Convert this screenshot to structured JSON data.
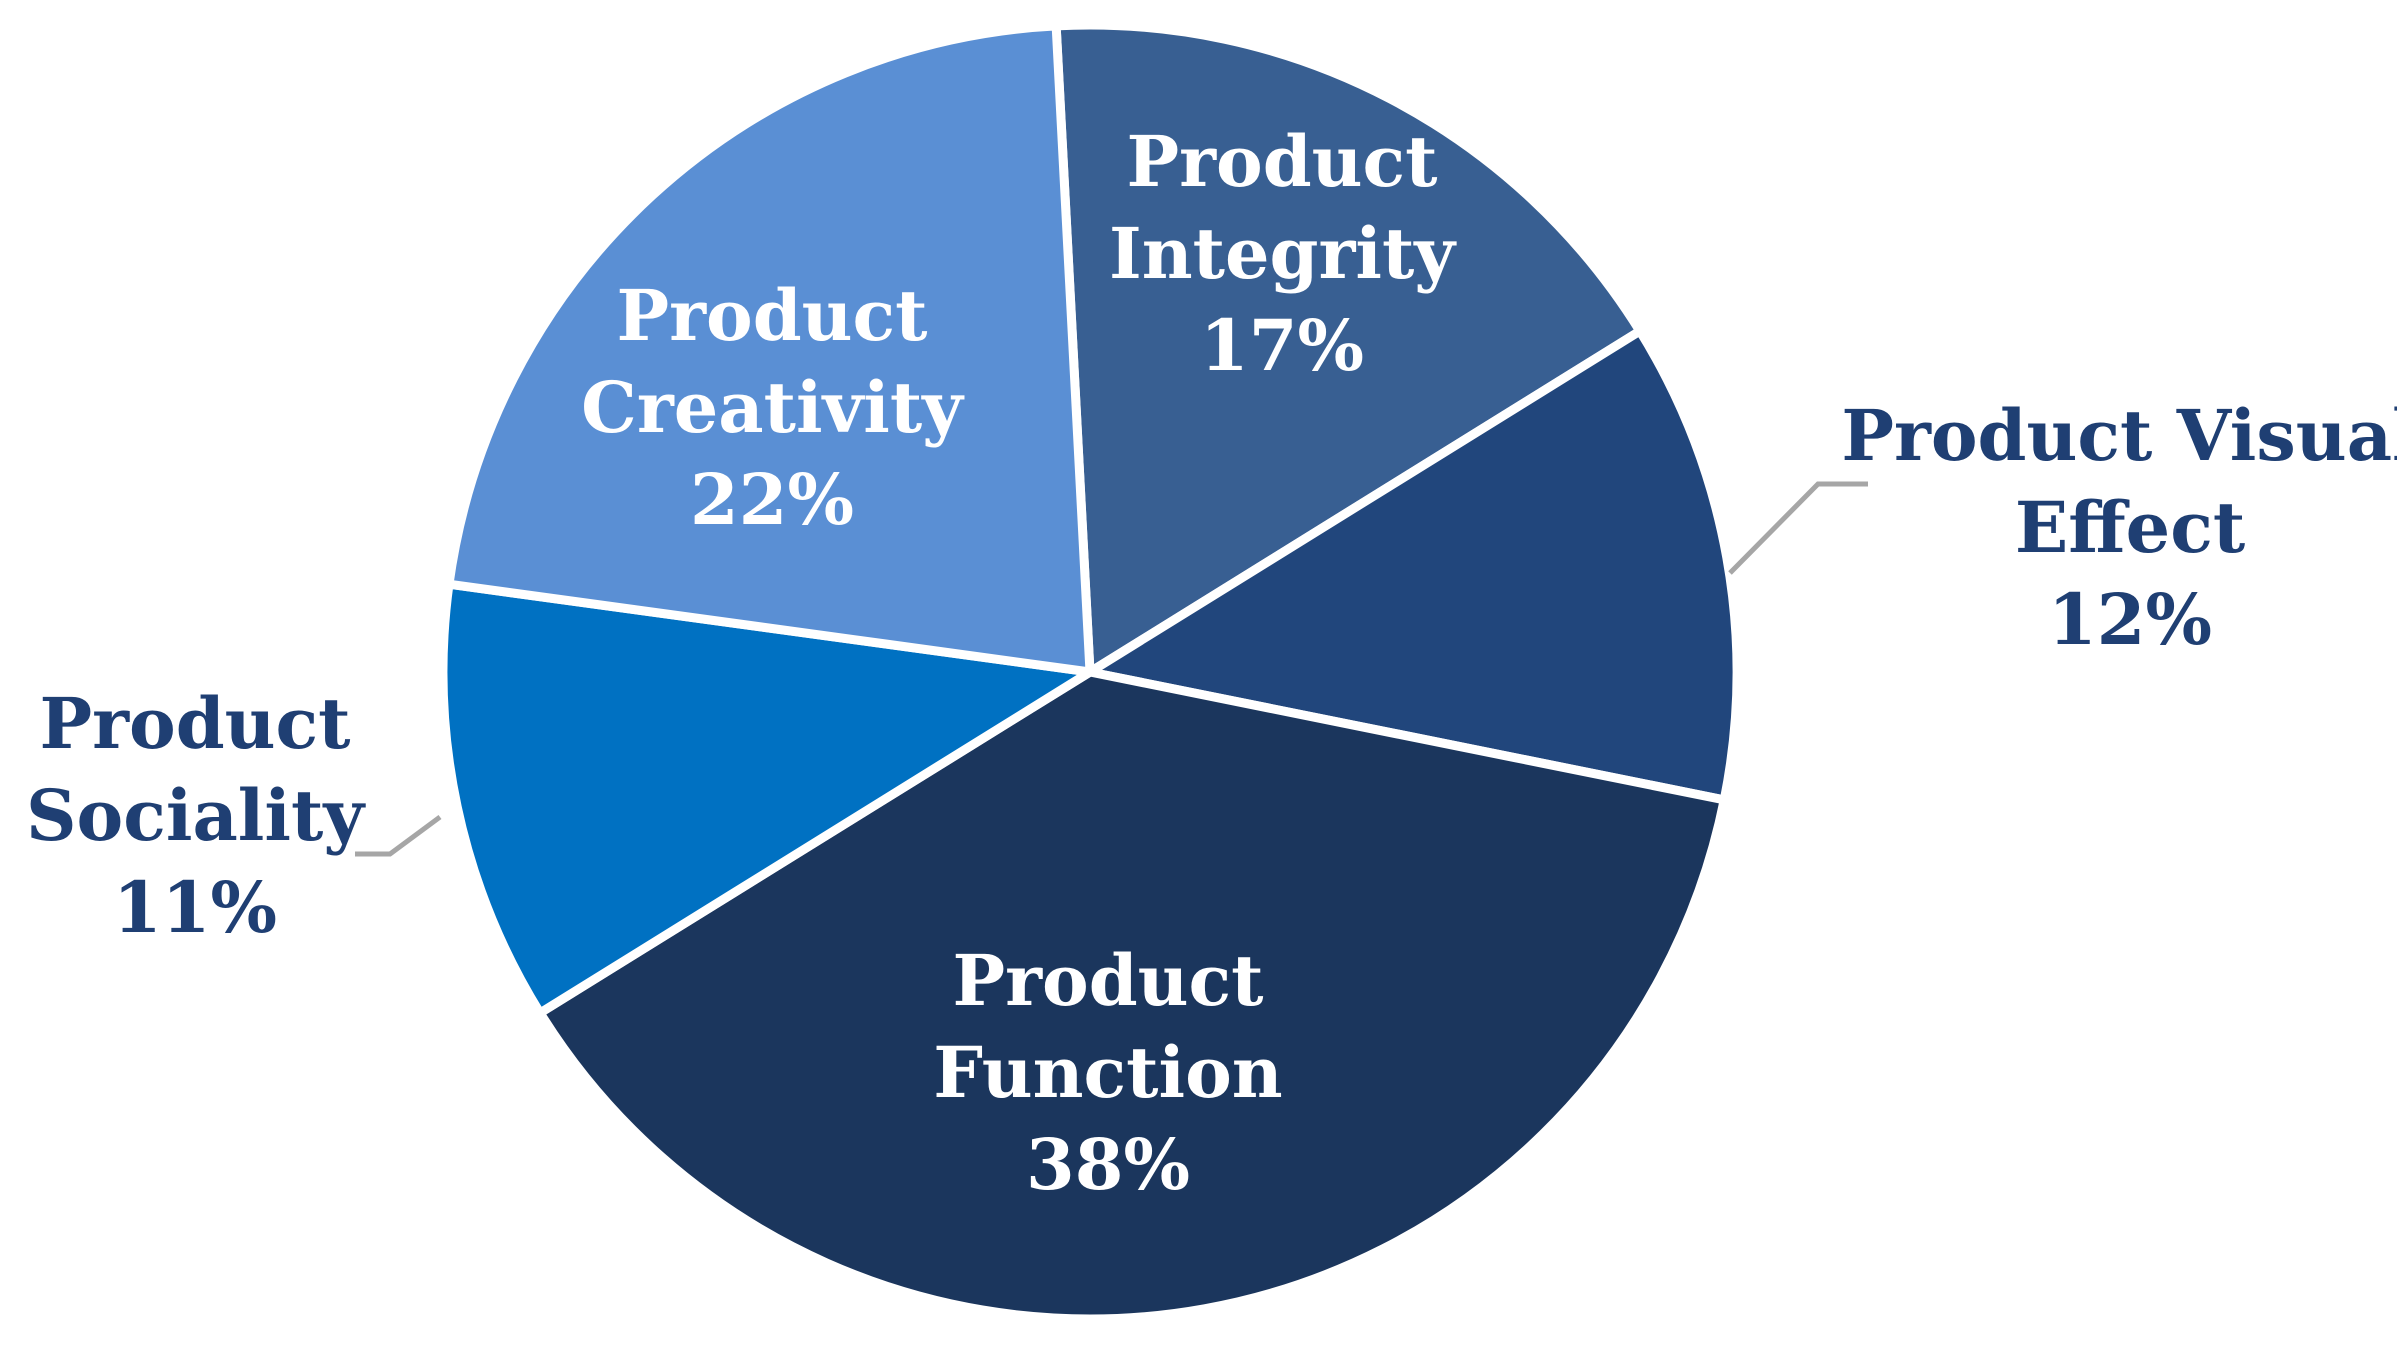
{
  "chart_data": {
    "type": "pie",
    "title": "",
    "slices": [
      {
        "label_lines": [
          "Product",
          "Integrity"
        ],
        "value": 17,
        "value_label": "17%",
        "color": "#385f92",
        "label_position": "inside"
      },
      {
        "label_lines": [
          "Product Visual",
          "Effect"
        ],
        "value": 12,
        "value_label": "12%",
        "color": "#21467c",
        "label_position": "outside-right"
      },
      {
        "label_lines": [
          "Product",
          "Function"
        ],
        "value": 38,
        "value_label": "38%",
        "color": "#1b365d",
        "label_position": "inside"
      },
      {
        "label_lines": [
          "Product",
          "Sociality"
        ],
        "value": 11,
        "value_label": "11%",
        "color": "#0071c2",
        "label_position": "outside-left"
      },
      {
        "label_lines": [
          "Product",
          "Creativity"
        ],
        "value": 22,
        "value_label": "22%",
        "color": "#5a8fd4",
        "label_position": "inside"
      }
    ],
    "start_angle_deg": -3,
    "direction": "clockwise",
    "legend": "none",
    "inside_label_color": "#ffffff",
    "outside_label_color": "#1f3f73",
    "leader_line_color": "#a6a6a6",
    "separator_color": "#ffffff"
  }
}
